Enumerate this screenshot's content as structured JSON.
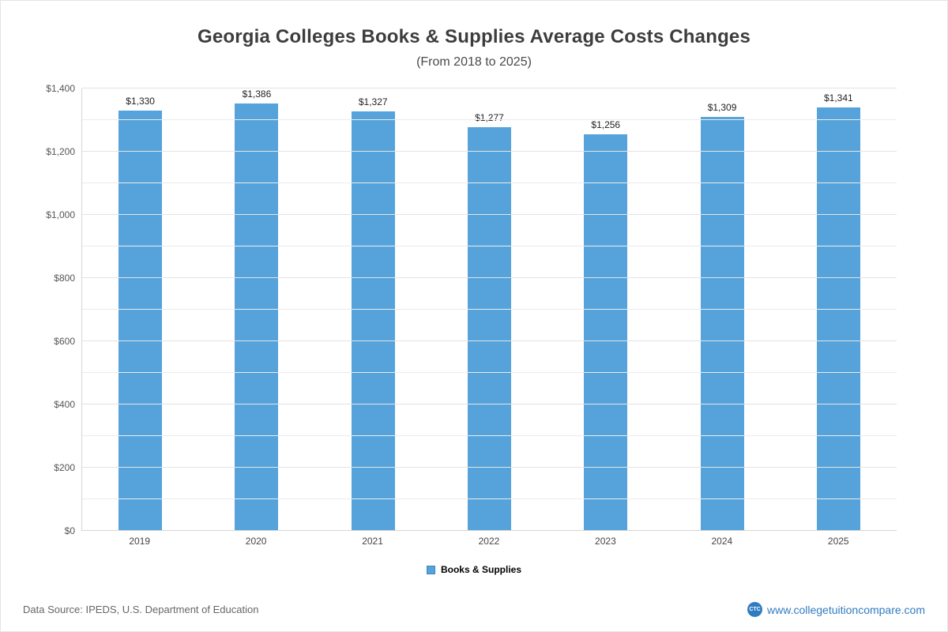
{
  "chart_data": {
    "type": "bar",
    "title": "Georgia Colleges  Books & Supplies Average Costs Changes",
    "subtitle": "(From 2018 to 2025)",
    "categories": [
      "2019",
      "2020",
      "2021",
      "2022",
      "2023",
      "2024",
      "2025"
    ],
    "values": [
      1330,
      1386,
      1327,
      1277,
      1256,
      1309,
      1341
    ],
    "value_labels": [
      "$1,330",
      "$1,386",
      "$1,327",
      "$1,277",
      "$1,256",
      "$1,309",
      "$1,341"
    ],
    "ylim": [
      0,
      1400
    ],
    "y_tick_step": 200,
    "y_minor_step": 100,
    "y_tick_labels": [
      "$0",
      "$200",
      "$400",
      "$600",
      "$800",
      "$1,000",
      "$1,200",
      "$1,400"
    ],
    "legend": [
      "Books & Supplies"
    ],
    "legend_position": "bottom",
    "grid": true,
    "bar_color": "#55a3da"
  },
  "footer": {
    "data_source": "Data Source: IPEDS, U.S. Department of Education",
    "website": "www.collegetuitioncompare.com",
    "logo_text": "CTC"
  }
}
